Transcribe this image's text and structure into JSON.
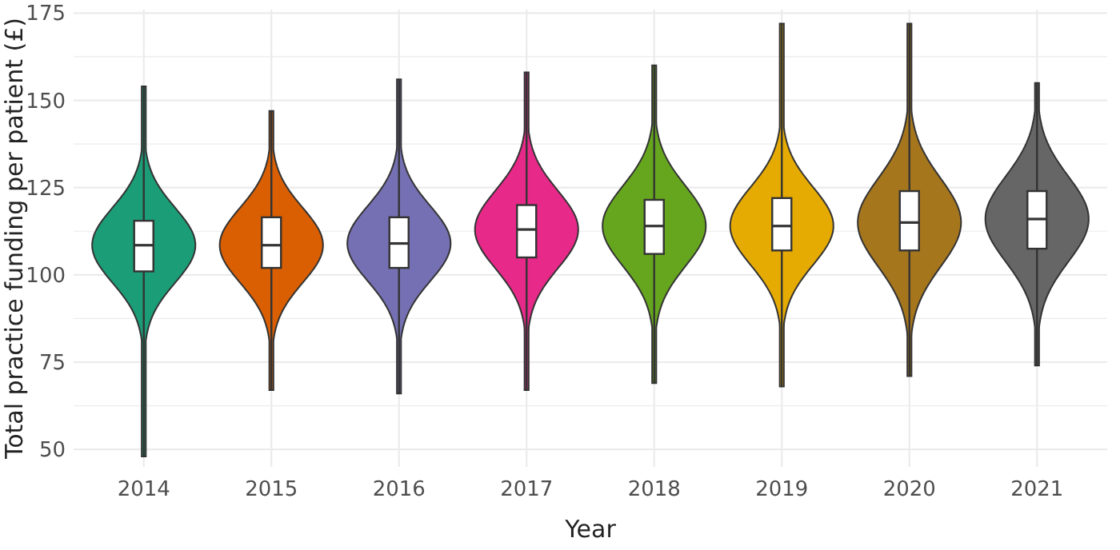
{
  "chart_data": {
    "type": "box",
    "xlabel": "Year",
    "ylabel": "Total practice funding per patient (£)",
    "categories": [
      "2014",
      "2015",
      "2016",
      "2017",
      "2018",
      "2019",
      "2020",
      "2021"
    ],
    "boxes": [
      {
        "low": 48,
        "q1": 101,
        "median": 108.5,
        "q3": 115.5,
        "high": 154
      },
      {
        "low": 67,
        "q1": 102,
        "median": 108.5,
        "q3": 116.5,
        "high": 147
      },
      {
        "low": 66,
        "q1": 102,
        "median": 109,
        "q3": 116.5,
        "high": 156
      },
      {
        "low": 67,
        "q1": 105,
        "median": 113,
        "q3": 120,
        "high": 158
      },
      {
        "low": 69,
        "q1": 106,
        "median": 114,
        "q3": 121.5,
        "high": 160
      },
      {
        "low": 68,
        "q1": 107,
        "median": 114,
        "q3": 122,
        "high": 172
      },
      {
        "low": 71,
        "q1": 107,
        "median": 115,
        "q3": 124,
        "high": 172
      },
      {
        "low": 74,
        "q1": 107.5,
        "median": 116,
        "q3": 124,
        "high": 155
      }
    ],
    "ylim": [
      45,
      176
    ],
    "yticks": [
      50,
      {
        "value": 62.5,
        "label": null
      },
      75,
      {
        "value": 87.5,
        "label": null
      },
      100,
      {
        "value": 112.5,
        "label": null
      },
      125,
      {
        "value": 137.5,
        "label": null
      },
      150,
      {
        "value": 162.5,
        "label": null
      },
      175
    ],
    "grid": true
  }
}
